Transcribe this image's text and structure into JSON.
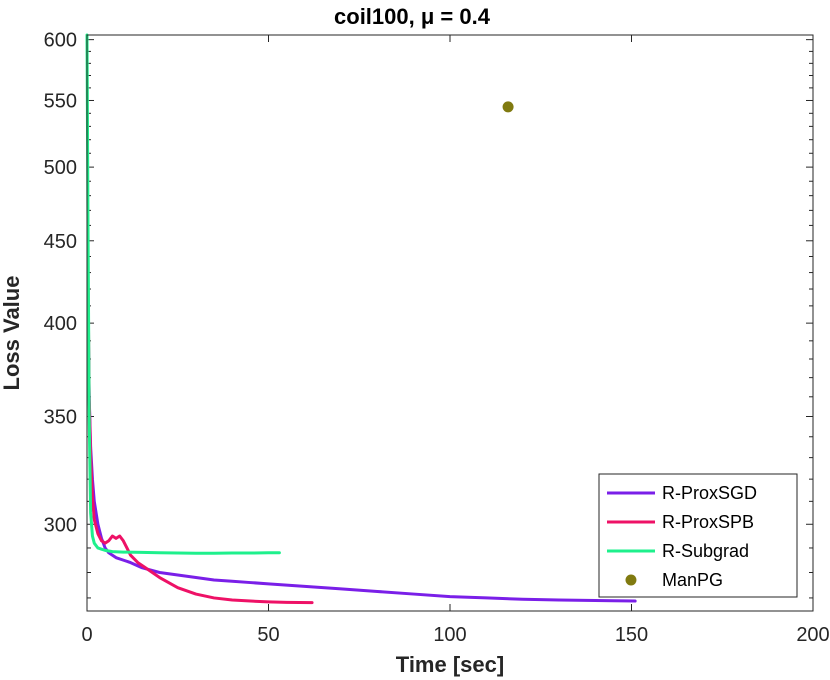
{
  "chart_data": {
    "type": "line",
    "title": "coil100, μ = 0.4",
    "xlabel": "Time [sec]",
    "ylabel": "Loss Value",
    "xlim": [
      0,
      200
    ],
    "ylim": [
      265,
      604
    ],
    "y_scale": "log",
    "grid": false,
    "legend_position": "bottom-right",
    "x_ticks": [
      0,
      50,
      100,
      150,
      200
    ],
    "y_ticks": [
      300,
      350,
      400,
      450,
      500,
      550,
      600
    ],
    "series": [
      {
        "name": "R-ProxSGD",
        "type": "line",
        "color": "#7a1fe8",
        "x": [
          0.3,
          0.6,
          1,
          1.5,
          2,
          3,
          4,
          5,
          6,
          8,
          10,
          12,
          15,
          20,
          25,
          30,
          35,
          40,
          45,
          50,
          55,
          60,
          70,
          80,
          90,
          100,
          110,
          120,
          130,
          140,
          145,
          151
        ],
        "y": [
          405,
          360,
          335,
          320,
          310,
          300,
          294,
          290,
          288,
          286,
          285,
          284,
          282,
          280,
          279,
          278,
          277,
          276.5,
          276,
          275.5,
          275,
          274.5,
          273.5,
          272.5,
          271.5,
          270.5,
          270,
          269.5,
          269.2,
          269,
          268.9,
          268.8
        ]
      },
      {
        "name": "R-ProxSPB",
        "type": "line",
        "color": "#ee1166",
        "x": [
          0.3,
          0.6,
          1,
          1.5,
          2,
          3,
          4,
          5,
          6,
          7,
          8,
          9,
          10,
          11,
          12,
          14,
          16,
          18,
          20,
          25,
          30,
          35,
          40,
          45,
          50,
          55,
          62
        ],
        "y": [
          420,
          360,
          330,
          312,
          302,
          296,
          293,
          292,
          293,
          295,
          294,
          295,
          293,
          290,
          287,
          284,
          282,
          280,
          278,
          274,
          271.5,
          270,
          269.2,
          268.8,
          268.5,
          268.3,
          268.2
        ]
      },
      {
        "name": "R-Subgrad",
        "type": "line",
        "color": "#1ef08c",
        "x": [
          0,
          0.3,
          0.6,
          1,
          1.5,
          2,
          3,
          4,
          5,
          7,
          10,
          15,
          20,
          25,
          30,
          35,
          40,
          45,
          50,
          53
        ],
        "y": [
          604,
          450,
          350,
          305,
          295,
          292,
          290,
          289.5,
          289,
          288.5,
          288.3,
          288.2,
          288,
          287.9,
          287.8,
          287.8,
          287.9,
          287.9,
          288,
          288
        ]
      },
      {
        "name": "ManPG",
        "type": "scatter",
        "color": "#807a10",
        "x": [
          116
        ],
        "y": [
          545
        ]
      }
    ]
  }
}
